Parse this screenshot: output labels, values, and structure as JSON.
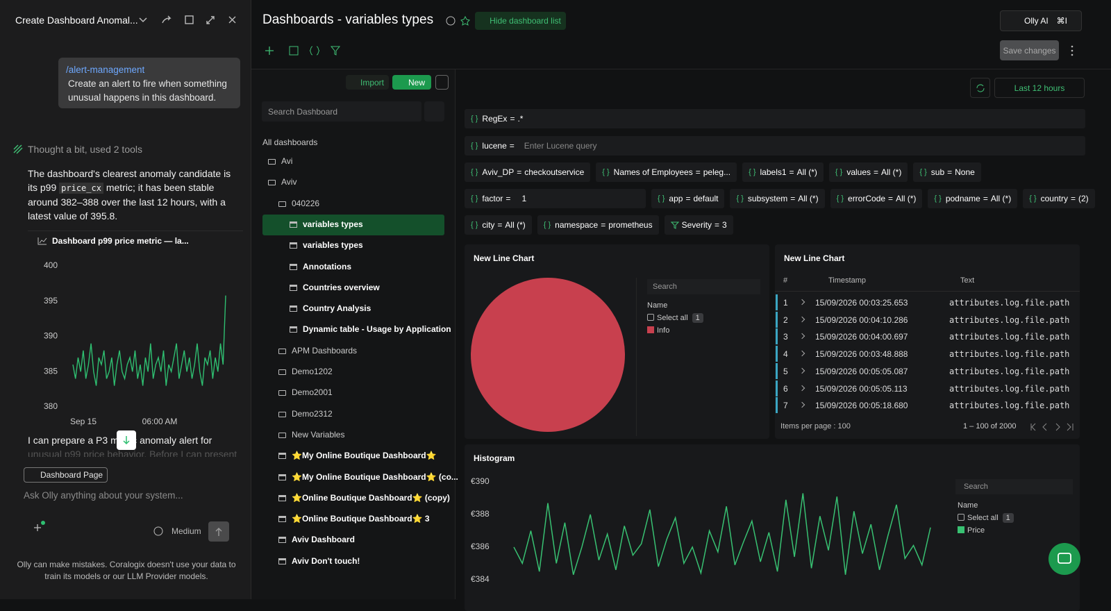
{
  "chat": {
    "title": "Create Dashboard Anomal...",
    "user_message": {
      "link": "/alert-management",
      "text": "Create an alert to fire when something unusual happens in this dashboard."
    },
    "thought": "Thought a bit, used 2 tools",
    "reply": {
      "before": "The dashboard's clearest anomaly candidate is its p99 ",
      "code": "price_cx",
      "after": " metric; it has been stable around 382–388 over the last 12 hours, with a latest value of 395.8."
    },
    "followup": "I can prepare a P3 metric anomaly alert for",
    "followup_faded": "unusual p99 price behavior. Before I can present",
    "context_chip": "Dashboard Page",
    "input_placeholder": "Ask Olly anything about your system...",
    "model": "Medium",
    "disclaimer": "Olly can make mistakes. Coralogix doesn't use your data to train its models or our LLM Provider models."
  },
  "header": {
    "title": "Dashboards - variables types",
    "hide_list": "Hide dashboard list",
    "olly": "Olly AI",
    "shortcut": "⌘I",
    "save": "Save changes"
  },
  "sidebar": {
    "import": "Import",
    "new": "New",
    "search_placeholder": "Search Dashboard",
    "section": "All dashboards",
    "items": [
      {
        "label": "Avi",
        "kind": "folder",
        "level": 0
      },
      {
        "label": "Aviv",
        "kind": "folder",
        "level": 0
      },
      {
        "label": "040226",
        "kind": "folder",
        "level": 1
      },
      {
        "label": "variables types",
        "kind": "dashboard",
        "level": 2,
        "selected": true
      },
      {
        "label": "variables types",
        "kind": "dashboard",
        "level": 2
      },
      {
        "label": "Annotations",
        "kind": "dashboard",
        "level": 2
      },
      {
        "label": "Countries overview",
        "kind": "dashboard",
        "level": 2
      },
      {
        "label": "Country Analysis",
        "kind": "dashboard",
        "level": 2
      },
      {
        "label": "Dynamic table - Usage by Application",
        "kind": "dashboard",
        "level": 2
      },
      {
        "label": "APM Dashboards",
        "kind": "folder",
        "level": 1
      },
      {
        "label": "Demo1202",
        "kind": "folder",
        "level": 1
      },
      {
        "label": "Demo2001",
        "kind": "folder",
        "level": 1
      },
      {
        "label": "Demo2312",
        "kind": "folder",
        "level": 1
      },
      {
        "label": "New Variables",
        "kind": "folder",
        "level": 1
      },
      {
        "label": "⭐My Online Boutique Dashboard⭐",
        "kind": "dashboard",
        "level": 1
      },
      {
        "label": "⭐My Online Boutique Dashboard⭐ (co...",
        "kind": "dashboard",
        "level": 1
      },
      {
        "label": "⭐Online Boutique Dashboard⭐ (copy)",
        "kind": "dashboard",
        "level": 1
      },
      {
        "label": "⭐Online Boutique Dashboard⭐ 3",
        "kind": "dashboard",
        "level": 1
      },
      {
        "label": "Aviv Dashboard",
        "kind": "dashboard",
        "level": 1
      },
      {
        "label": "Aviv Don't touch!",
        "kind": "dashboard",
        "level": 1
      }
    ]
  },
  "time_range": "Last 12 hours",
  "variables": [
    [
      {
        "name": "RegEx",
        "value": ".*",
        "wide": true
      }
    ],
    [
      {
        "name": "lucene",
        "placeholder": "Enter Lucene query",
        "wide": true
      }
    ],
    [
      {
        "name": "Aviv_DP",
        "value": "checkoutservice"
      },
      {
        "name": "Names of Employees",
        "value": "peleg..."
      },
      {
        "name": "labels1",
        "value": "All (*)"
      },
      {
        "name": "values",
        "value": "All (*)"
      },
      {
        "name": "sub",
        "value": "None"
      }
    ],
    [
      {
        "name": "factor",
        "value": "1",
        "input": true
      },
      {
        "name": "app",
        "value": "default"
      },
      {
        "name": "subsystem",
        "value": "All (*)"
      },
      {
        "name": "errorCode",
        "value": "All (*)"
      },
      {
        "name": "podname",
        "value": "All (*)"
      },
      {
        "name": "country",
        "value": "(2)"
      }
    ],
    [
      {
        "name": "city",
        "value": "All (*)"
      },
      {
        "name": "namespace",
        "value": "prometheus"
      },
      {
        "name": "Severity",
        "value": "3",
        "filter": true
      }
    ]
  ],
  "chart_data": [
    {
      "type": "line",
      "title": "Dashboard p99 price metric — la...",
      "color": "#2fbf71",
      "ylim": [
        380,
        400
      ],
      "yticks": [
        380,
        385,
        390,
        395,
        400
      ],
      "x_labels": [
        "Sep 15",
        "06:00 AM"
      ],
      "values": [
        386,
        384,
        387,
        385,
        388,
        384,
        386,
        389,
        385,
        383,
        387,
        386,
        388,
        384,
        385,
        387,
        383,
        386,
        388,
        385,
        384,
        386,
        387,
        385,
        388,
        384,
        386,
        383,
        387,
        385,
        389,
        384,
        386,
        387,
        385,
        388,
        383,
        386,
        385,
        387,
        389,
        384,
        386,
        388,
        385,
        387,
        384,
        386,
        389,
        385,
        383,
        387,
        386,
        388,
        384,
        387,
        385,
        389,
        386,
        395.8
      ]
    },
    {
      "type": "pie",
      "title": "New Line Chart",
      "categories": [
        "Info"
      ],
      "values": [
        100
      ],
      "colors": [
        "#c8404e"
      ],
      "legend": {
        "search": "Search",
        "header": "Name",
        "select_all": "Select all",
        "count": 1
      }
    },
    {
      "type": "line",
      "title": "Histogram",
      "color": "#38c172",
      "ylim": [
        382.8,
        390.6
      ],
      "yticks": [
        {
          "value": 384,
          "label": "€384"
        },
        {
          "value": 386,
          "label": "€386"
        },
        {
          "value": 388,
          "label": "€388"
        },
        {
          "value": 390,
          "label": "€390"
        }
      ],
      "series": [
        {
          "name": "Price",
          "color": "#38c172",
          "values": [
            386,
            385,
            387,
            384.5,
            388.7,
            385,
            387.5,
            384.3,
            386,
            388,
            385.2,
            386.8,
            384.6,
            387.3,
            385.5,
            386.2,
            388.3,
            384.8,
            386.5,
            387.8,
            385,
            386,
            384.4,
            387,
            385.7,
            388.5,
            384.9,
            386.3,
            387.6,
            385.1,
            386.9,
            384.5,
            388.9,
            385.4,
            389.3,
            384.7,
            387.9,
            385.8,
            389.1,
            384.3,
            388.2,
            385.6,
            387.4,
            384.6,
            386.7,
            388.6,
            385.3,
            386.1,
            384.9,
            387.2
          ]
        }
      ],
      "legend": {
        "search": "Search",
        "header": "Name",
        "select_all": "Select all",
        "count": 1
      }
    }
  ],
  "logs_table": {
    "title": "New Line Chart",
    "columns": [
      "#",
      "Timestamp",
      "Text"
    ],
    "rows": [
      [
        1,
        "15/09/2026 00:03:25.653",
        "attributes.log.file.path :/\\"
      ],
      [
        2,
        "15/09/2026 00:04:10.286",
        "attributes.log.file.path :/\\"
      ],
      [
        3,
        "15/09/2026 00:04:00.697",
        "attributes.log.file.path :/\\"
      ],
      [
        4,
        "15/09/2026 00:03:48.888",
        "attributes.log.file.path :/\\"
      ],
      [
        5,
        "15/09/2026 00:05:05.087",
        "attributes.log.file.path :/\\"
      ],
      [
        6,
        "15/09/2026 00:05:05.113",
        "attributes.log.file.path :/\\"
      ],
      [
        7,
        "15/09/2026 00:05:18.680",
        "attributes.log.file.path :/\\"
      ]
    ],
    "items_per_page": "Items per page : 100",
    "range": "1 – 100 of 2000"
  }
}
